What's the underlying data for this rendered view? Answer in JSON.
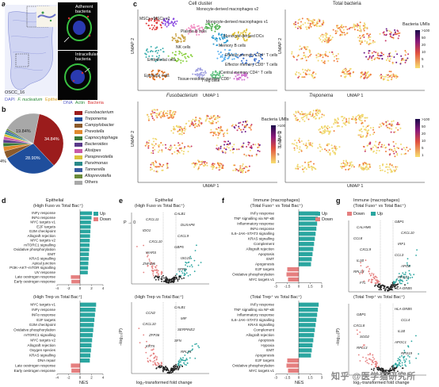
{
  "panel_a": {
    "label": "a",
    "sample": "OSCC_16",
    "legend_left": "DAPI",
    "legend_fn": "F. nucleatum",
    "legend_ep": "Epithelia",
    "legend_dna": "DNA",
    "legend_actin": "Actin",
    "legend_bact": "Bacteria",
    "adherent": "Adherent bacteria",
    "intracellular": "Intracellular bacteria"
  },
  "panel_b": {
    "label": "b",
    "pct_1": "34.84%",
    "pct_2": "28.90%",
    "pct_3": "19.84%",
    "pct_4": "4%",
    "legend": [
      {
        "name": "Fusobacterium",
        "color": "#9b1c1c"
      },
      {
        "name": "Treponema",
        "color": "#1f4e9c"
      },
      {
        "name": "Campylobacter",
        "color": "#8b5a2b"
      },
      {
        "name": "Prevotella",
        "color": "#e08a2e"
      },
      {
        "name": "Capnocytophaga",
        "color": "#3a7a3a"
      },
      {
        "name": "Bacteroides",
        "color": "#5a3a8a"
      },
      {
        "name": "Alistipes",
        "color": "#c85aa8"
      },
      {
        "name": "Paraprevotella",
        "color": "#d9c23a"
      },
      {
        "name": "Parvimonas",
        "color": "#2a8a8a"
      },
      {
        "name": "Tannerella",
        "color": "#3a5aa0"
      },
      {
        "name": "Alloprevotella",
        "color": "#6a8a3a"
      },
      {
        "name": "Others",
        "color": "#a8a8a8"
      }
    ],
    "chart_data": {
      "type": "pie",
      "slices": [
        {
          "name": "Fusobacterium",
          "value": 34.84
        },
        {
          "name": "Treponema",
          "value": 28.9
        },
        {
          "name": "Campylobacter",
          "value": 4.0
        },
        {
          "name": "Prevotella",
          "value": 2.5
        },
        {
          "name": "Capnocytophaga",
          "value": 2.0
        },
        {
          "name": "Bacteroides",
          "value": 1.8
        },
        {
          "name": "Alistipes",
          "value": 1.6
        },
        {
          "name": "Paraprevotella",
          "value": 1.4
        },
        {
          "name": "Parvimonas",
          "value": 1.2
        },
        {
          "name": "Tannerella",
          "value": 1.0
        },
        {
          "name": "Alloprevotella",
          "value": 0.96
        },
        {
          "name": "Others",
          "value": 19.84
        }
      ]
    }
  },
  "panel_c": {
    "label": "c",
    "title_main": "Cell cluster",
    "title_total": "Total bacteria",
    "title_fuso": "Fusobacterium",
    "title_trep": "Treponema",
    "umap1": "UMAP 1",
    "umap2": "UMAP 2",
    "colorbar_title": "Bacteria UMIs",
    "colorbar_ticks": [
      ">100",
      "50",
      "20",
      "10",
      "5",
      "1"
    ],
    "clusters": [
      "MSCs v1",
      "MSCs v2",
      "Monocyte-derived macrophages v2",
      "Monocyte-derived macrophages v1",
      "Plasma B cells",
      "Monocyte-derived DCs",
      "Memory B cells",
      "NK cells",
      "Endothelial cells",
      "Effector memory CD4⁺ T cells",
      "Effector memory CD8⁺ T cells",
      "Epithelial cells",
      "Tissue-resident memory CD8⁺",
      "T reg cells",
      "Central memory CD4⁺ T cells"
    ]
  },
  "panel_d": {
    "label": "d",
    "title": "Epithelial",
    "subtitle_top": "(High Fuso vs Total Bac⁺)",
    "subtitle_bottom": "(High Trep vs Total Bac⁺)",
    "xlabel": "NES",
    "up_label": "Up",
    "down_label": "Down",
    "up_color": "#2aa6a0",
    "down_color": "#e57f7f",
    "chart_data": [
      {
        "type": "bar",
        "categories": [
          "INFγ response",
          "INFα response",
          "MYC targets v1",
          "E2F targets",
          "G2M checkpoint",
          "Allograft rejection",
          "MYC targets v2",
          "mTORC1 signalling",
          "Oxidative phosphorylation",
          "EMT",
          "KRAS signalling",
          "Apical junction",
          "PI3K–AKT–mTOR signalling",
          "UV response",
          "Late oestrogen response",
          "Early oestrogen response"
        ],
        "values": [
          2.1,
          2.0,
          1.9,
          1.85,
          1.8,
          1.75,
          1.7,
          1.65,
          1.6,
          1.55,
          1.5,
          1.45,
          1.4,
          1.35,
          -1.6,
          -1.5
        ],
        "xlim": [
          -4,
          4
        ]
      },
      {
        "type": "bar",
        "categories": [
          "MYC targets v1",
          "INFγ response",
          "INFα response",
          "E2F targets",
          "G2M checkpoint",
          "Oxidative phosphorylation",
          "mTORC1 signalling",
          "MYC targets v2",
          "Allograft rejection",
          "Oxygen species",
          "KRAS signalling",
          "DNA repair",
          "Late oestrogen response",
          "Early oestrogen response"
        ],
        "values": [
          2.8,
          2.7,
          2.6,
          2.5,
          2.4,
          2.3,
          2.2,
          2.1,
          2.0,
          1.9,
          1.8,
          1.7,
          -1.6,
          -1.5
        ],
        "xlim": [
          -4,
          4
        ]
      }
    ]
  },
  "panel_e": {
    "label": "e",
    "title": "Epithelial",
    "subtitle_top": "(High Fuso vs Total Bac⁺)",
    "subtitle_bottom": "(High Trep vs Total Bac⁺)",
    "ylabel": "−log₁₀(P)",
    "xlabel": "log₂-transformed fold change",
    "p_label": "P → 0",
    "genes_top": [
      "CALB1",
      "CXCL11",
      "DUXAP8",
      "IDO1",
      "CXCL9",
      "CXCL10",
      "GBP5",
      "WARS",
      "ISG15",
      "ZNF185",
      "SPP1"
    ],
    "genes_bottom": [
      "CALB1",
      "CCN2",
      "MIF",
      "CXCL10",
      "SERPINE2",
      "ZFP36",
      "SFN",
      "KRT5",
      "RPL24"
    ]
  },
  "panel_f": {
    "label": "f",
    "title": "Immune (macrophages)",
    "subtitle_top": "(Total Fuso⁺ vs Total Bac⁺)",
    "subtitle_bottom": "(Total Trep⁺ vs Total Bac⁺)",
    "xlabel": "NES",
    "up_label": "Up",
    "down_label": "Down",
    "chart_data": [
      {
        "type": "bar",
        "categories": [
          "INFγ response",
          "TNF signalling via NF-κB",
          "Inflammatory response",
          "INFα response",
          "IL6–JAK–STAT3 signalling",
          "KRAS signalling",
          "Complement",
          "Allograft rejection",
          "Apoptosis",
          "EMT",
          "Apogenesis",
          "E2F targets",
          "Oxidative phosphorylation",
          "MYC targets v1"
        ],
        "values": [
          2.6,
          2.5,
          2.4,
          2.3,
          2.2,
          2.1,
          2.0,
          1.9,
          1.8,
          1.7,
          1.6,
          -1.5,
          -1.6,
          -1.4
        ],
        "xlim": [
          -3,
          3
        ]
      },
      {
        "type": "bar",
        "categories": [
          "INFγ response",
          "TNF signalling via NF-κB",
          "Inflammatory response",
          "IL6–JAK–STAT3 signalling",
          "KRAS signalling",
          "Complement",
          "Allograft rejection",
          "Apoptosis",
          "Hypoxia",
          "EMT",
          "Apogenesis",
          "E2F targets",
          "Oxidative phosphorylation",
          "MYC targets v1"
        ],
        "values": [
          2.6,
          2.5,
          2.4,
          2.3,
          2.2,
          2.1,
          2.0,
          1.9,
          1.8,
          1.7,
          1.6,
          -1.5,
          -1.6,
          -1.4
        ],
        "xlim": [
          -3,
          3
        ]
      }
    ]
  },
  "panel_g": {
    "label": "g",
    "title": "Immune (macrophages)",
    "subtitle_top": "(Total Fuso⁺ vs Total Bac⁺)",
    "subtitle_bottom": "(Total Trep⁺ vs Total Bac⁺)",
    "ylabel": "−log₁₀(P)",
    "xlabel": "log₂-transformed fold change",
    "up_label": "Up",
    "down_label": "Down",
    "genes_top": [
      "GBP1",
      "CALHM6",
      "CXCL10",
      "CCL8",
      "IRF1",
      "CXCL9",
      "CCL3",
      "IL1B",
      "APOE",
      "RPL13",
      "RPS12",
      "FTL",
      "HLA-DRB5"
    ],
    "genes_bottom": [
      "HLA-DRB5",
      "GBP1",
      "CCL4",
      "CXCL8",
      "IL1B",
      "SOD2",
      "APOC1",
      "RPL13",
      "RPS19"
    ]
  },
  "watermark": "知乎 @医学猫研究所"
}
